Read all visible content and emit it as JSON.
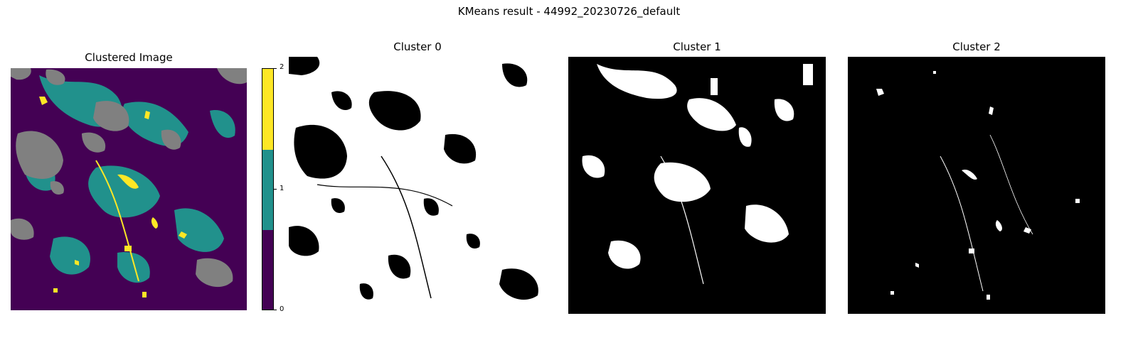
{
  "figure": {
    "suptitle": "KMeans result - 44992_20230726_default"
  },
  "panels": [
    {
      "title": "Clustered Image",
      "kind": "clustered"
    },
    {
      "title": "Cluster 0",
      "kind": "mask",
      "coverage": "high"
    },
    {
      "title": "Cluster 1",
      "kind": "mask",
      "coverage": "medium"
    },
    {
      "title": "Cluster 2",
      "kind": "mask",
      "coverage": "low"
    }
  ],
  "colorbar": {
    "ticks": [
      "0",
      "1",
      "2"
    ],
    "colors": [
      "#440154",
      "#21918c",
      "#fde725"
    ]
  },
  "colors": {
    "cluster0": "#440154",
    "cluster1": "#21918c",
    "cluster2": "#fde725",
    "nodata": "#808080",
    "mask_on": "#ffffff",
    "mask_off": "#000000"
  }
}
